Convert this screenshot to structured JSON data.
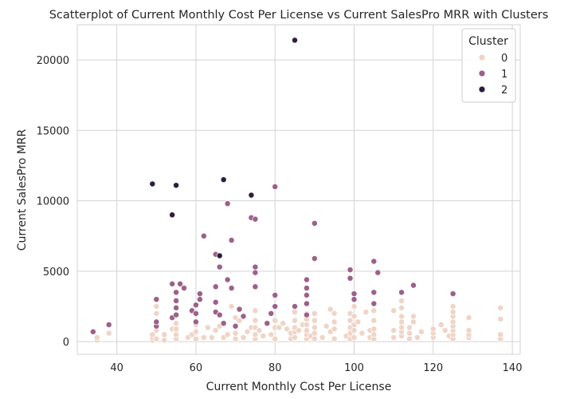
{
  "chart_data": {
    "type": "scatter",
    "title": "Scatterplot of Current Monthly Cost Per License vs Current SalesPro MRR with Clusters",
    "xlabel": "Current Monthly Cost Per License",
    "ylabel": "Current SalesPro MRR",
    "xlim": [
      30,
      142
    ],
    "ylim": [
      -900,
      22500
    ],
    "x_ticks": [
      40,
      60,
      80,
      100,
      120,
      140
    ],
    "y_ticks": [
      0,
      5000,
      10000,
      15000,
      20000
    ],
    "grid": true,
    "legend": {
      "title": "Cluster",
      "placement": "top-right"
    },
    "series": [
      {
        "name": "0",
        "color": "#efd5c7",
        "points": [
          [
            35,
            100
          ],
          [
            35,
            300
          ],
          [
            38,
            600
          ],
          [
            49,
            100
          ],
          [
            49,
            300
          ],
          [
            49,
            500
          ],
          [
            50,
            200
          ],
          [
            50,
            800
          ],
          [
            50,
            1300
          ],
          [
            50,
            2000
          ],
          [
            50,
            2500
          ],
          [
            52,
            100
          ],
          [
            52,
            500
          ],
          [
            54,
            900
          ],
          [
            55,
            200
          ],
          [
            55,
            500
          ],
          [
            55,
            900
          ],
          [
            55,
            1300
          ],
          [
            58,
            300
          ],
          [
            59,
            500
          ],
          [
            60,
            200
          ],
          [
            60,
            700
          ],
          [
            60,
            1200
          ],
          [
            62,
            300
          ],
          [
            63,
            1000
          ],
          [
            64,
            300
          ],
          [
            65,
            800
          ],
          [
            66,
            1100
          ],
          [
            67,
            300
          ],
          [
            68,
            500
          ],
          [
            69,
            2500
          ],
          [
            70,
            200
          ],
          [
            70,
            600
          ],
          [
            70,
            1700
          ],
          [
            71,
            1500
          ],
          [
            72,
            300
          ],
          [
            73,
            700
          ],
          [
            74,
            1000
          ],
          [
            75,
            200
          ],
          [
            75,
            500
          ],
          [
            75,
            1000
          ],
          [
            75,
            1500
          ],
          [
            75,
            2200
          ],
          [
            76,
            800
          ],
          [
            77,
            400
          ],
          [
            78,
            1300
          ],
          [
            79,
            500
          ],
          [
            80,
            200
          ],
          [
            80,
            1000
          ],
          [
            80,
            1500
          ],
          [
            80,
            3200
          ],
          [
            81,
            1000
          ],
          [
            82,
            1300
          ],
          [
            83,
            900
          ],
          [
            84,
            200
          ],
          [
            84,
            600
          ],
          [
            85,
            300
          ],
          [
            85,
            700
          ],
          [
            85,
            1000
          ],
          [
            85,
            1500
          ],
          [
            85,
            2100
          ],
          [
            86,
            800
          ],
          [
            87,
            1200
          ],
          [
            88,
            200
          ],
          [
            88,
            500
          ],
          [
            88,
            800
          ],
          [
            88,
            1200
          ],
          [
            88,
            1600
          ],
          [
            88,
            2000
          ],
          [
            89,
            400
          ],
          [
            90,
            200
          ],
          [
            90,
            600
          ],
          [
            90,
            1000
          ],
          [
            90,
            1500
          ],
          [
            90,
            2000
          ],
          [
            92,
            300
          ],
          [
            93,
            1100
          ],
          [
            94,
            700
          ],
          [
            94,
            2300
          ],
          [
            95,
            200
          ],
          [
            95,
            900
          ],
          [
            95,
            1400
          ],
          [
            95,
            2000
          ],
          [
            98,
            400
          ],
          [
            99,
            200
          ],
          [
            99,
            600
          ],
          [
            99,
            1000
          ],
          [
            99,
            1500
          ],
          [
            99,
            2000
          ],
          [
            100,
            300
          ],
          [
            100,
            800
          ],
          [
            100,
            1200
          ],
          [
            100,
            1800
          ],
          [
            100,
            2500
          ],
          [
            101,
            1400
          ],
          [
            102,
            600
          ],
          [
            103,
            2100
          ],
          [
            104,
            300
          ],
          [
            104,
            800
          ],
          [
            105,
            200
          ],
          [
            105,
            500
          ],
          [
            105,
            900
          ],
          [
            105,
            1500
          ],
          [
            105,
            2200
          ],
          [
            110,
            300
          ],
          [
            110,
            800
          ],
          [
            110,
            2200
          ],
          [
            112,
            400
          ],
          [
            112,
            700
          ],
          [
            112,
            1000
          ],
          [
            112,
            1400
          ],
          [
            112,
            1800
          ],
          [
            112,
            2400
          ],
          [
            112,
            2900
          ],
          [
            114,
            200
          ],
          [
            114,
            600
          ],
          [
            114,
            1000
          ],
          [
            115,
            1400
          ],
          [
            115,
            1800
          ],
          [
            116,
            300
          ],
          [
            117,
            700
          ],
          [
            120,
            300
          ],
          [
            120,
            600
          ],
          [
            120,
            900
          ],
          [
            122,
            1200
          ],
          [
            123,
            800
          ],
          [
            124,
            400
          ],
          [
            125,
            200
          ],
          [
            125,
            500
          ],
          [
            125,
            800
          ],
          [
            125,
            1100
          ],
          [
            125,
            1400
          ],
          [
            125,
            1800
          ],
          [
            125,
            2100
          ],
          [
            125,
            2500
          ],
          [
            129,
            300
          ],
          [
            129,
            500
          ],
          [
            129,
            800
          ],
          [
            129,
            1700
          ],
          [
            137,
            200
          ],
          [
            137,
            500
          ],
          [
            137,
            1600
          ],
          [
            137,
            2400
          ]
        ]
      },
      {
        "name": "1",
        "color": "#9c6189",
        "points": [
          [
            34,
            700
          ],
          [
            38,
            1200
          ],
          [
            50,
            1100
          ],
          [
            50,
            1400
          ],
          [
            50,
            3000
          ],
          [
            54,
            1700
          ],
          [
            54,
            4100
          ],
          [
            55,
            1900
          ],
          [
            55,
            2400
          ],
          [
            55,
            2900
          ],
          [
            55,
            3500
          ],
          [
            56,
            4100
          ],
          [
            57,
            3800
          ],
          [
            59,
            2200
          ],
          [
            60,
            1400
          ],
          [
            60,
            2000
          ],
          [
            60,
            2600
          ],
          [
            61,
            3000
          ],
          [
            61,
            3400
          ],
          [
            62,
            7500
          ],
          [
            65,
            6200
          ],
          [
            65,
            3900
          ],
          [
            65,
            2100
          ],
          [
            65,
            2800
          ],
          [
            66,
            5300
          ],
          [
            66,
            1900
          ],
          [
            67,
            1300
          ],
          [
            68,
            4400
          ],
          [
            68,
            9800
          ],
          [
            69,
            7200
          ],
          [
            69,
            3800
          ],
          [
            70,
            1100
          ],
          [
            71,
            2300
          ],
          [
            72,
            1800
          ],
          [
            74,
            8800
          ],
          [
            75,
            8700
          ],
          [
            75,
            5300
          ],
          [
            75,
            4900
          ],
          [
            75,
            3900
          ],
          [
            78,
            1300
          ],
          [
            79,
            2000
          ],
          [
            80,
            3300
          ],
          [
            80,
            2500
          ],
          [
            80,
            11000
          ],
          [
            85,
            2500
          ],
          [
            88,
            4400
          ],
          [
            88,
            3800
          ],
          [
            88,
            3300
          ],
          [
            88,
            2700
          ],
          [
            88,
            1900
          ],
          [
            90,
            8400
          ],
          [
            90,
            5900
          ],
          [
            99,
            5100
          ],
          [
            99,
            4500
          ],
          [
            100,
            3400
          ],
          [
            100,
            3000
          ],
          [
            105,
            5700
          ],
          [
            105,
            3500
          ],
          [
            105,
            2700
          ],
          [
            106,
            4900
          ],
          [
            112,
            3500
          ],
          [
            115,
            4000
          ],
          [
            125,
            3400
          ]
        ]
      },
      {
        "name": "2",
        "color": "#2d1e3e",
        "points": [
          [
            49,
            11200
          ],
          [
            54,
            9000
          ],
          [
            55,
            11100
          ],
          [
            66,
            6100
          ],
          [
            67,
            11500
          ],
          [
            74,
            10400
          ],
          [
            85,
            21400
          ]
        ]
      }
    ]
  }
}
